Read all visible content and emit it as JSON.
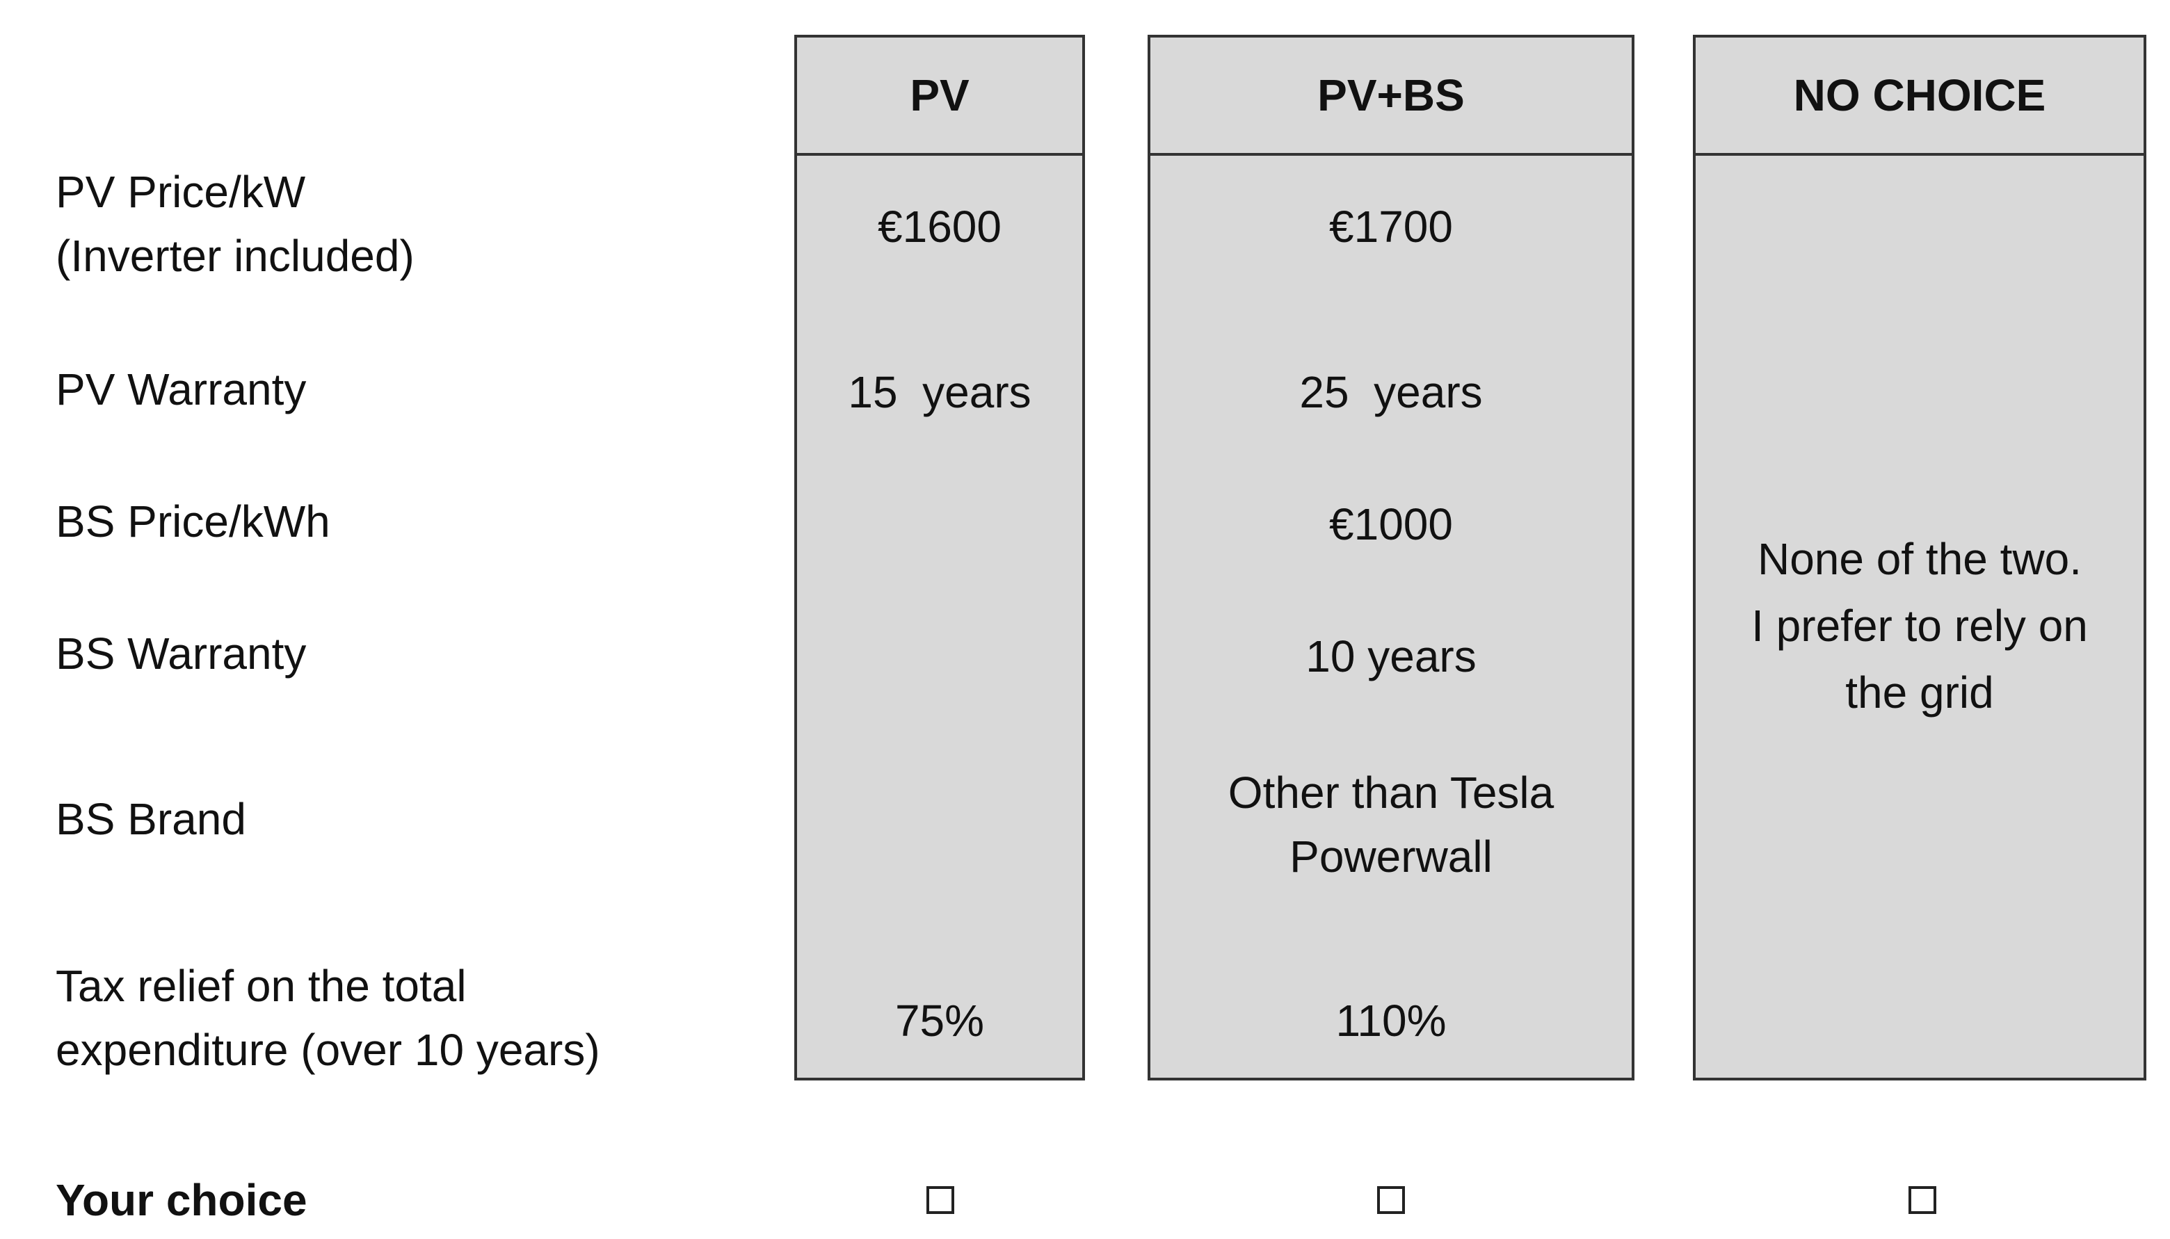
{
  "row_labels": {
    "pv_price_line1": "PV Price/kW",
    "pv_price_line2": "(Inverter included)",
    "pv_warranty": "PV Warranty",
    "bs_price": "BS Price/kWh",
    "bs_warranty": "BS Warranty",
    "bs_brand": "BS Brand",
    "tax_relief_line1": "Tax relief on the total",
    "tax_relief_line2": "expenditure (over 10 years)",
    "your_choice": "Your choice"
  },
  "columns": {
    "pv": {
      "header": "PV",
      "pv_price": "€1600",
      "pv_warranty": "15  years",
      "tax_relief": "75%"
    },
    "pv_bs": {
      "header": "PV+BS",
      "pv_price": "€1700",
      "pv_warranty": "25  years",
      "bs_price": "€1000",
      "bs_warranty": "10 years",
      "bs_brand_line1": "Other than Tesla",
      "bs_brand_line2": "Powerwall",
      "tax_relief": "110%"
    },
    "no_choice": {
      "header": "NO CHOICE",
      "text_line1": "None of the two.",
      "text_line2": "I prefer to rely on",
      "text_line3": "the grid"
    }
  },
  "choices": {
    "pv_checked": false,
    "pv_bs_checked": false,
    "no_choice_checked": false
  }
}
